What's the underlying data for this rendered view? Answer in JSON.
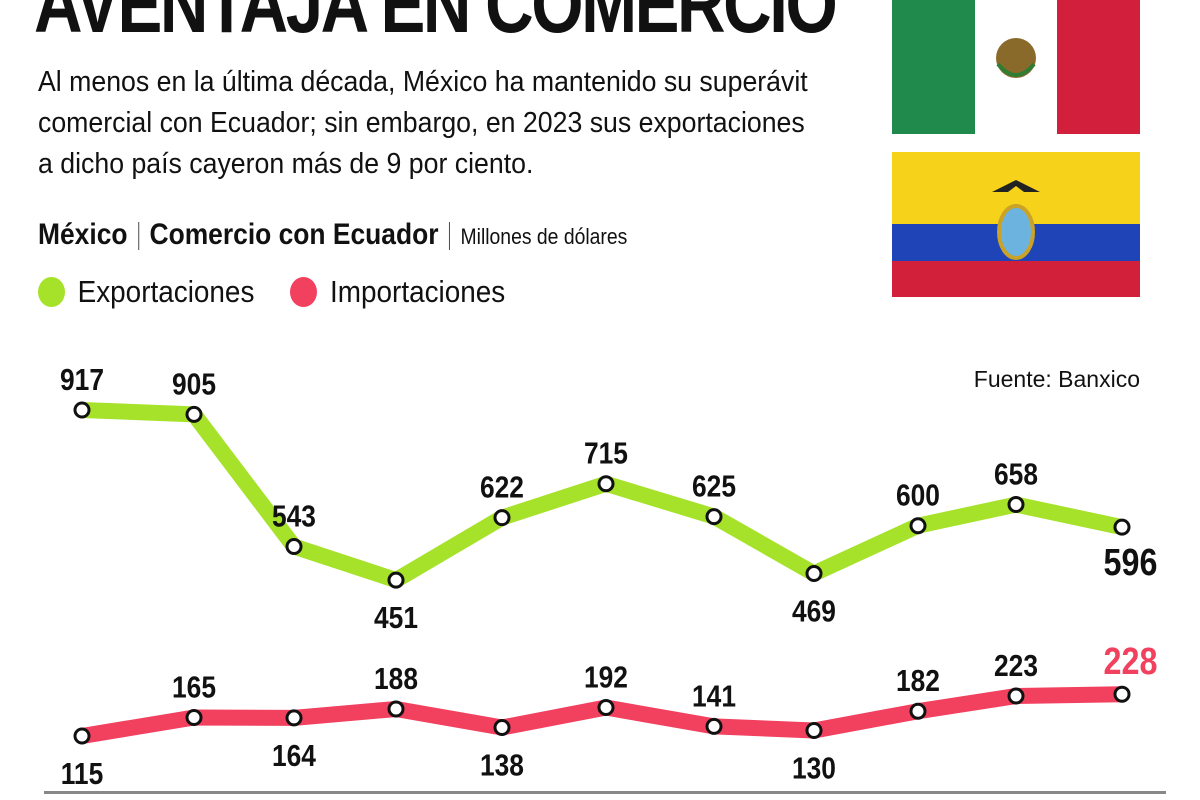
{
  "title": "AVENTAJA EN COMERCIO",
  "subtitle": "Al menos en la última década, México ha mantenido su superávit comercial con Ecuador; sin embargo, en 2023 sus exportaciones a dicho país cayeron más de 9 por ciento.",
  "meta": {
    "country": "México",
    "topic": "Comercio con Ecuador",
    "unit": "Millones de dólares"
  },
  "source": "Fuente: Banxico",
  "flags": [
    "mexico-flag",
    "ecuador-flag"
  ],
  "chart_data": {
    "type": "line",
    "title": "",
    "x_labels_shown": false,
    "legend_placement": "top-left",
    "series": [
      {
        "name": "Exportaciones",
        "color": "#a6e22a",
        "values": [
          917,
          905,
          543,
          451,
          622,
          715,
          625,
          469,
          600,
          658,
          596
        ]
      },
      {
        "name": "Importaciones",
        "color": "#f2405f",
        "values": [
          115,
          165,
          164,
          188,
          138,
          192,
          141,
          130,
          182,
          223,
          228
        ]
      }
    ],
    "label_colors": {
      "default": "#111111",
      "last_importaciones": "#f2405f"
    }
  }
}
